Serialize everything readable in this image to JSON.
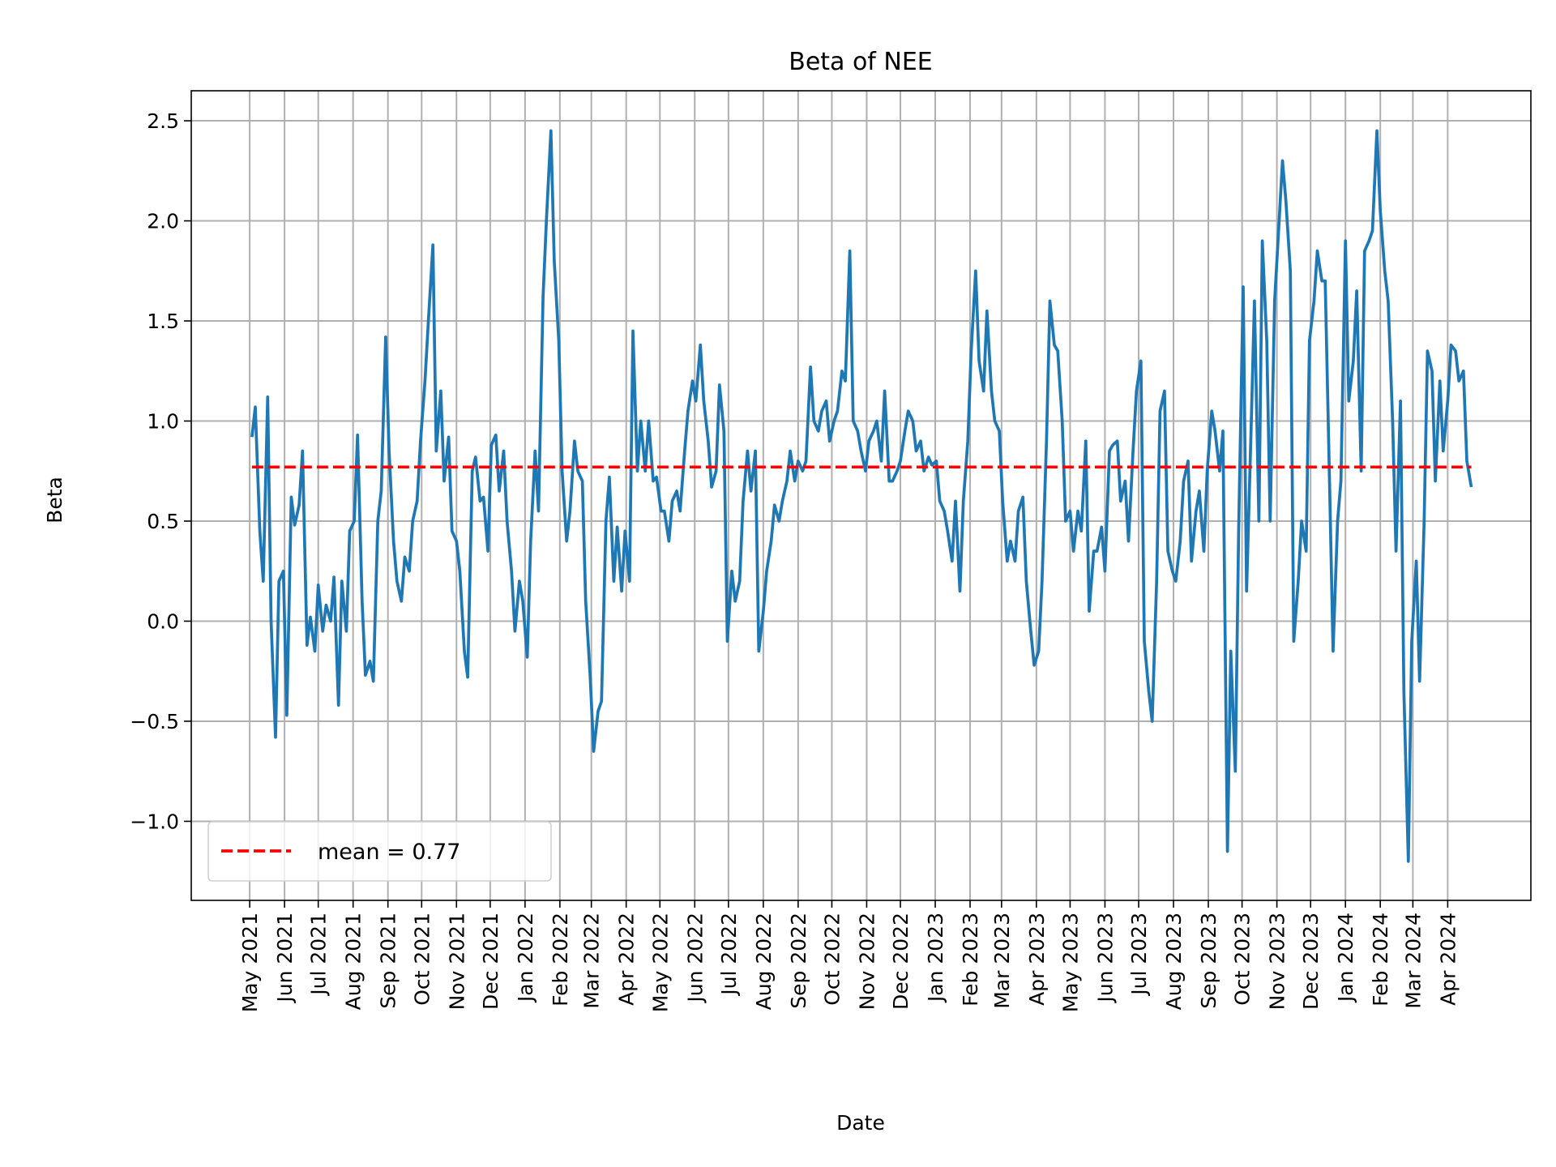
{
  "chart_data": {
    "type": "line",
    "title": "Beta of NEE",
    "xlabel": "Date",
    "ylabel": "Beta",
    "xlim": [
      "2021-03-10",
      "2024-06-14"
    ],
    "ylim": [
      -1.395,
      2.65
    ],
    "grid": true,
    "legend_placement": "lower left",
    "yticks": [
      -1.0,
      -0.5,
      0.0,
      0.5,
      1.0,
      1.5,
      2.0,
      2.5
    ],
    "ytick_labels": [
      "−1.0",
      "−0.5",
      "0.0",
      "0.5",
      "1.0",
      "1.5",
      "2.0",
      "2.5"
    ],
    "xtick_labels": [
      "May 2021",
      "Jun 2021",
      "Jul 2021",
      "Aug 2021",
      "Sep 2021",
      "Oct 2021",
      "Nov 2021",
      "Dec 2021",
      "Jan 2022",
      "Feb 2022",
      "Mar 2022",
      "Apr 2022",
      "May 2022",
      "Jun 2022",
      "Jul 2022",
      "Aug 2022",
      "Sep 2022",
      "Oct 2022",
      "Nov 2022",
      "Dec 2022",
      "Jan 2023",
      "Feb 2023",
      "Mar 2023",
      "Apr 2023",
      "May 2023",
      "Jun 2023",
      "Jul 2023",
      "Aug 2023",
      "Sep 2023",
      "Oct 2023",
      "Nov 2023",
      "Dec 2023",
      "Jan 2024",
      "Feb 2024",
      "Mar 2024",
      "Apr 2024"
    ],
    "colors": {
      "series": "#1f77b4",
      "mean": "#ff0000",
      "grid": "#b0b0b0"
    },
    "mean": {
      "value": 0.77,
      "label": "mean = 0.77"
    },
    "series": [
      {
        "x": [
          "2021-05-03",
          "2021-05-06",
          "2021-05-10",
          "2021-05-13",
          "2021-05-17",
          "2021-05-20",
          "2021-05-24",
          "2021-05-27",
          "2021-05-31",
          "2021-06-03",
          "2021-06-07",
          "2021-06-10",
          "2021-06-14",
          "2021-06-17",
          "2021-06-21",
          "2021-06-24",
          "2021-06-28",
          "2021-07-01",
          "2021-07-05",
          "2021-07-08",
          "2021-07-12",
          "2021-07-15",
          "2021-07-19",
          "2021-07-22",
          "2021-07-26",
          "2021-07-29",
          "2021-08-02",
          "2021-08-05",
          "2021-08-09",
          "2021-08-12",
          "2021-08-16",
          "2021-08-19",
          "2021-08-23",
          "2021-08-26",
          "2021-08-30",
          "2021-09-02",
          "2021-09-06",
          "2021-09-09",
          "2021-09-13",
          "2021-09-16",
          "2021-09-20",
          "2021-09-23",
          "2021-09-27",
          "2021-09-30",
          "2021-10-04",
          "2021-10-07",
          "2021-10-11",
          "2021-10-14",
          "2021-10-18",
          "2021-10-21",
          "2021-10-25",
          "2021-10-28",
          "2021-11-01",
          "2021-11-04",
          "2021-11-08",
          "2021-11-11",
          "2021-11-15",
          "2021-11-18",
          "2021-11-22",
          "2021-11-25",
          "2021-11-29",
          "2021-12-02",
          "2021-12-06",
          "2021-12-09",
          "2021-12-13",
          "2021-12-16",
          "2021-12-20",
          "2021-12-23",
          "2021-12-27",
          "2021-12-30",
          "2022-01-03",
          "2022-01-06",
          "2022-01-10",
          "2022-01-13",
          "2022-01-17",
          "2022-01-20",
          "2022-01-24",
          "2022-01-27",
          "2022-01-31",
          "2022-02-03",
          "2022-02-07",
          "2022-02-10",
          "2022-02-14",
          "2022-02-17",
          "2022-02-21",
          "2022-02-24",
          "2022-02-28",
          "2022-03-03",
          "2022-03-07",
          "2022-03-10",
          "2022-03-14",
          "2022-03-17",
          "2022-03-21",
          "2022-03-24",
          "2022-03-28",
          "2022-03-31",
          "2022-04-04",
          "2022-04-07",
          "2022-04-11",
          "2022-04-14",
          "2022-04-18",
          "2022-04-21",
          "2022-04-25",
          "2022-04-28",
          "2022-05-02",
          "2022-05-05",
          "2022-05-09",
          "2022-05-12",
          "2022-05-16",
          "2022-05-19",
          "2022-05-23",
          "2022-05-26",
          "2022-05-30",
          "2022-06-02",
          "2022-06-06",
          "2022-06-09",
          "2022-06-13",
          "2022-06-16",
          "2022-06-20",
          "2022-06-23",
          "2022-06-27",
          "2022-06-30",
          "2022-07-04",
          "2022-07-07",
          "2022-07-11",
          "2022-07-14",
          "2022-07-18",
          "2022-07-21",
          "2022-07-25",
          "2022-07-28",
          "2022-08-01",
          "2022-08-04",
          "2022-08-08",
          "2022-08-11",
          "2022-08-15",
          "2022-08-18",
          "2022-08-22",
          "2022-08-25",
          "2022-08-29",
          "2022-09-01",
          "2022-09-05",
          "2022-09-08",
          "2022-09-12",
          "2022-09-15",
          "2022-09-19",
          "2022-09-22",
          "2022-09-26",
          "2022-09-29",
          "2022-10-03",
          "2022-10-06",
          "2022-10-10",
          "2022-10-13",
          "2022-10-17",
          "2022-10-20",
          "2022-10-24",
          "2022-10-27",
          "2022-10-31",
          "2022-11-03",
          "2022-11-07",
          "2022-11-10",
          "2022-11-14",
          "2022-11-17",
          "2022-11-21",
          "2022-11-24",
          "2022-11-28",
          "2022-12-01",
          "2022-12-05",
          "2022-12-08",
          "2022-12-12",
          "2022-12-15",
          "2022-12-19",
          "2022-12-22",
          "2022-12-26",
          "2022-12-29",
          "2023-01-02",
          "2023-01-05",
          "2023-01-09",
          "2023-01-12",
          "2023-01-16",
          "2023-01-19",
          "2023-01-23",
          "2023-01-26",
          "2023-01-30",
          "2023-02-02",
          "2023-02-06",
          "2023-02-09",
          "2023-02-13",
          "2023-02-16",
          "2023-02-20",
          "2023-02-23",
          "2023-02-27",
          "2023-03-02",
          "2023-03-06",
          "2023-03-09",
          "2023-03-13",
          "2023-03-16",
          "2023-03-20",
          "2023-03-23",
          "2023-03-27",
          "2023-03-30",
          "2023-04-03",
          "2023-04-06",
          "2023-04-10",
          "2023-04-13",
          "2023-04-17",
          "2023-04-20",
          "2023-04-24",
          "2023-04-27",
          "2023-05-01",
          "2023-05-04",
          "2023-05-08",
          "2023-05-11",
          "2023-05-15",
          "2023-05-18",
          "2023-05-22",
          "2023-05-25",
          "2023-05-29",
          "2023-06-01",
          "2023-06-05",
          "2023-06-08",
          "2023-06-12",
          "2023-06-15",
          "2023-06-19",
          "2023-06-22",
          "2023-06-26",
          "2023-06-29",
          "2023-07-03",
          "2023-07-06",
          "2023-07-10",
          "2023-07-13",
          "2023-07-17",
          "2023-07-20",
          "2023-07-24",
          "2023-07-27",
          "2023-07-31",
          "2023-08-03",
          "2023-08-07",
          "2023-08-10",
          "2023-08-14",
          "2023-08-17",
          "2023-08-21",
          "2023-08-24",
          "2023-08-28",
          "2023-08-31",
          "2023-09-04",
          "2023-09-07",
          "2023-09-11",
          "2023-09-14",
          "2023-09-18",
          "2023-09-21",
          "2023-09-25",
          "2023-09-28",
          "2023-10-02",
          "2023-10-05",
          "2023-10-09",
          "2023-10-12",
          "2023-10-16",
          "2023-10-19",
          "2023-10-23",
          "2023-10-26",
          "2023-10-30",
          "2023-11-02",
          "2023-11-06",
          "2023-11-09",
          "2023-11-13",
          "2023-11-16",
          "2023-11-20",
          "2023-11-23",
          "2023-11-27",
          "2023-11-30",
          "2023-12-04",
          "2023-12-07",
          "2023-12-11",
          "2023-12-14",
          "2023-12-18",
          "2023-12-21",
          "2023-12-25",
          "2023-12-28",
          "2024-01-01",
          "2024-01-04",
          "2024-01-08",
          "2024-01-11",
          "2024-01-15",
          "2024-01-18",
          "2024-01-22",
          "2024-01-25",
          "2024-01-29",
          "2024-02-01",
          "2024-02-05",
          "2024-02-08",
          "2024-02-12",
          "2024-02-15",
          "2024-02-19",
          "2024-02-22",
          "2024-02-26",
          "2024-02-29",
          "2024-03-04",
          "2024-03-07",
          "2024-03-11",
          "2024-03-14",
          "2024-03-18",
          "2024-03-21",
          "2024-03-25",
          "2024-03-28",
          "2024-04-01",
          "2024-04-04",
          "2024-04-08",
          "2024-04-11",
          "2024-04-15",
          "2024-04-18",
          "2024-04-22"
        ],
        "y": [
          0.92,
          1.07,
          0.45,
          0.2,
          1.12,
          0.0,
          -0.58,
          0.2,
          0.25,
          -0.47,
          0.62,
          0.48,
          0.58,
          0.85,
          -0.12,
          0.02,
          -0.15,
          0.18,
          -0.05,
          0.08,
          0.0,
          0.22,
          -0.42,
          0.2,
          -0.05,
          0.45,
          0.5,
          0.93,
          0.1,
          -0.27,
          -0.2,
          -0.3,
          0.5,
          0.65,
          1.42,
          0.85,
          0.4,
          0.2,
          0.1,
          0.32,
          0.25,
          0.5,
          0.6,
          0.9,
          1.2,
          1.5,
          1.88,
          0.85,
          1.15,
          0.7,
          0.92,
          0.45,
          0.4,
          0.25,
          -0.15,
          -0.28,
          0.75,
          0.82,
          0.6,
          0.62,
          0.35,
          0.88,
          0.93,
          0.65,
          0.85,
          0.5,
          0.25,
          -0.05,
          0.2,
          0.1,
          -0.18,
          0.4,
          0.85,
          0.55,
          1.62,
          2.0,
          2.45,
          1.8,
          1.4,
          0.75,
          0.4,
          0.55,
          0.9,
          0.75,
          0.7,
          0.1,
          -0.28,
          -0.65,
          -0.45,
          -0.4,
          0.5,
          0.72,
          0.2,
          0.47,
          0.15,
          0.45,
          0.2,
          1.45,
          0.75,
          1.0,
          0.75,
          1.0,
          0.7,
          0.72,
          0.55,
          0.55,
          0.4,
          0.6,
          0.65,
          0.55,
          0.85,
          1.05,
          1.2,
          1.1,
          1.38,
          1.1,
          0.9,
          0.67,
          0.75,
          1.18,
          0.95,
          -0.1,
          0.25,
          0.1,
          0.2,
          0.6,
          0.85,
          0.65,
          0.85,
          -0.15,
          0.05,
          0.25,
          0.4,
          0.58,
          0.5,
          0.6,
          0.7,
          0.85,
          0.7,
          0.8,
          0.75,
          0.8,
          1.27,
          1.0,
          0.95,
          1.05,
          1.1,
          0.9,
          1.0,
          1.05,
          1.25,
          1.2,
          1.85,
          1.0,
          0.95,
          0.85,
          0.75,
          0.9,
          0.95,
          1.0,
          0.8,
          1.15,
          0.7,
          0.7,
          0.75,
          0.8,
          0.95,
          1.05,
          1.0,
          0.85,
          0.9,
          0.75,
          0.82,
          0.78,
          0.8,
          0.6,
          0.55,
          0.45,
          0.3,
          0.6,
          0.15,
          0.6,
          0.9,
          1.35,
          1.75,
          1.3,
          1.15,
          1.55,
          1.15,
          1.0,
          0.95,
          0.6,
          0.3,
          0.4,
          0.3,
          0.55,
          0.62,
          0.2,
          -0.05,
          -0.22,
          -0.15,
          0.2,
          0.9,
          1.6,
          1.38,
          1.35,
          1.0,
          0.5,
          0.55,
          0.35,
          0.55,
          0.45,
          0.9,
          0.05,
          0.35,
          0.35,
          0.47,
          0.25,
          0.85,
          0.88,
          0.9,
          0.6,
          0.7,
          0.4,
          0.85,
          1.15,
          1.3,
          -0.1,
          -0.35,
          -0.5,
          0.2,
          1.05,
          1.15,
          0.35,
          0.25,
          0.2,
          0.4,
          0.7,
          0.8,
          0.3,
          0.55,
          0.65,
          0.35,
          0.75,
          1.05,
          0.95,
          0.75,
          0.95,
          -1.15,
          -0.15,
          -0.75,
          0.45,
          1.67,
          0.15,
          0.95,
          1.6,
          0.5,
          1.9,
          1.4,
          0.5,
          1.6,
          1.9,
          2.3,
          2.1,
          1.75,
          -0.1,
          0.2,
          0.5,
          0.35,
          1.4,
          1.6,
          1.85,
          1.7,
          1.7,
          0.65,
          -0.15,
          0.5,
          0.7,
          1.9,
          1.1,
          1.3,
          1.65,
          0.75,
          1.85,
          1.9,
          1.95,
          2.45,
          2.05,
          1.75,
          1.6,
          1.0,
          0.35,
          1.1,
          -0.35,
          -1.2,
          -0.1,
          0.3,
          -0.3,
          0.5,
          1.35,
          1.25,
          0.7,
          1.2,
          0.85,
          1.1,
          1.38,
          1.35,
          1.2,
          1.25,
          0.8,
          0.67
        ]
      }
    ]
  }
}
